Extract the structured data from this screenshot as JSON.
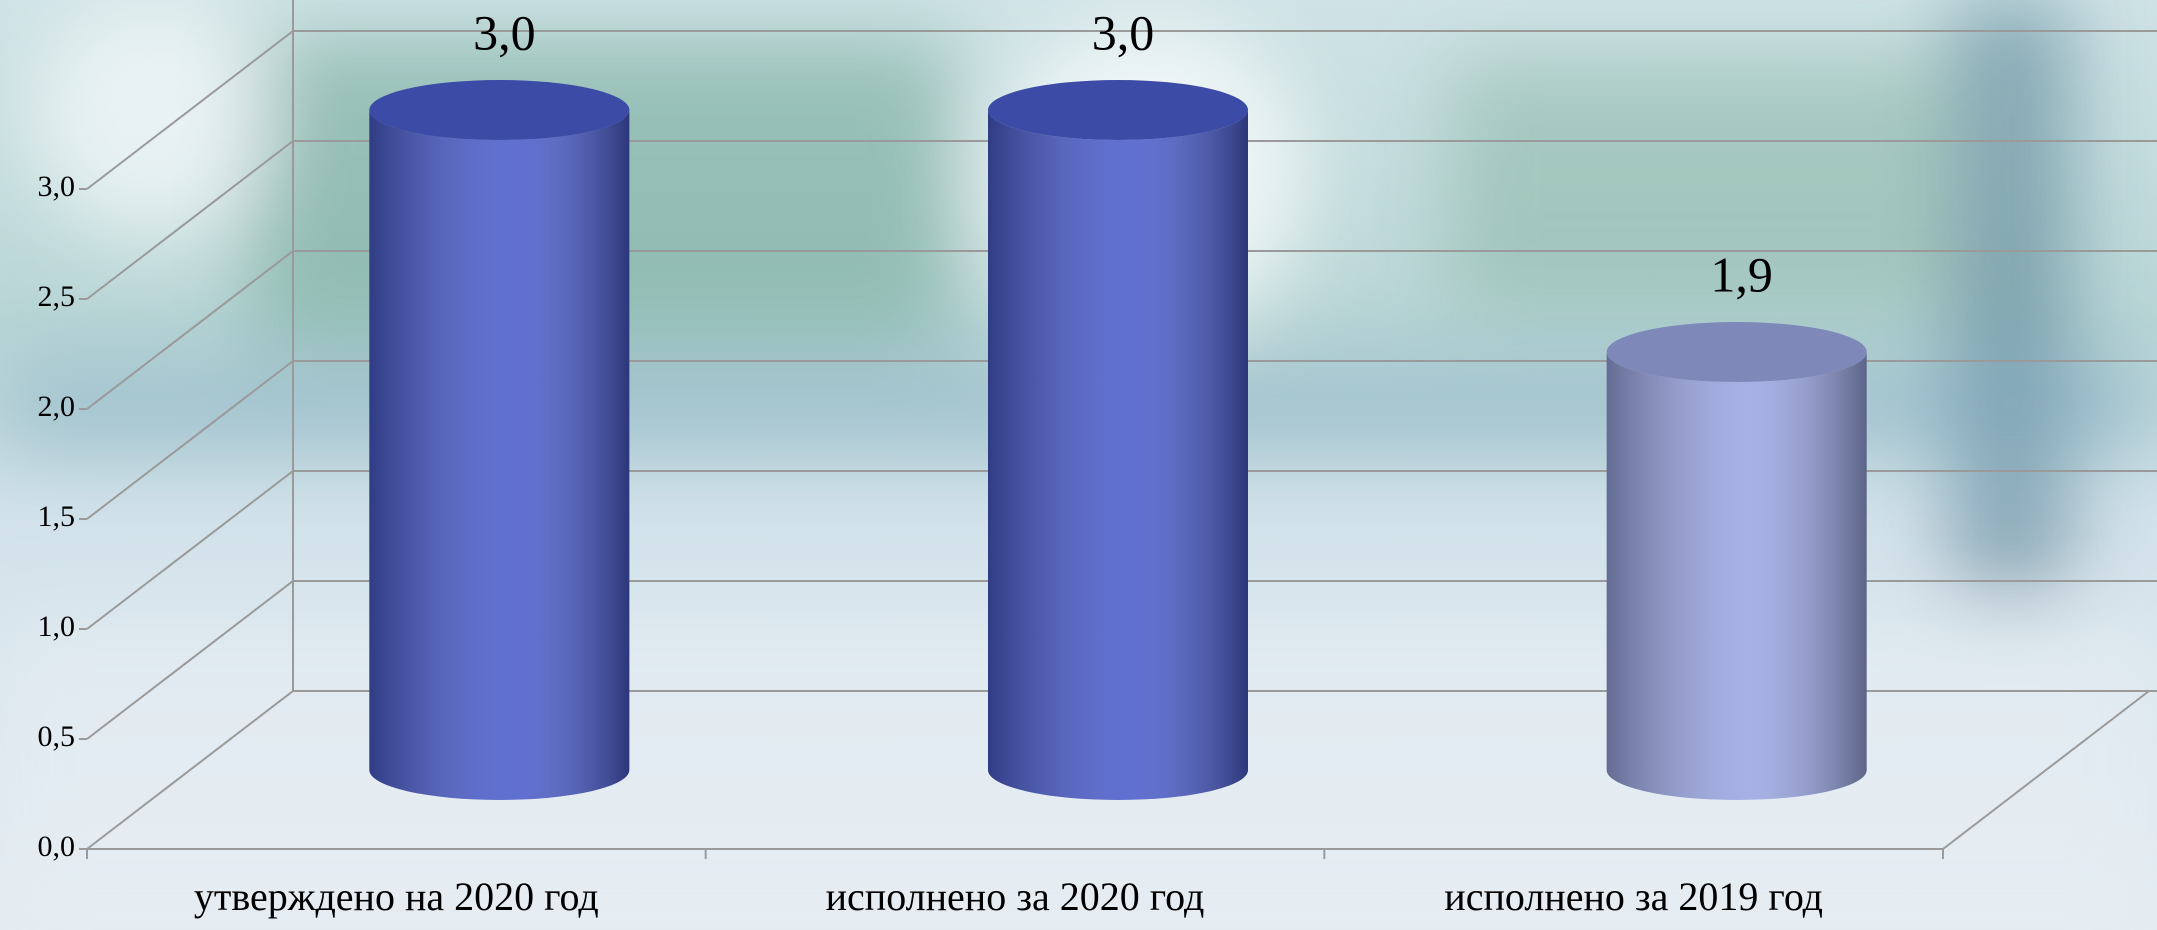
{
  "chart_data": {
    "type": "bar",
    "categories": [
      "утверждено на 2020 год",
      "исполнено за 2020 год",
      "исполнено за 2019 год"
    ],
    "values": [
      3.0,
      3.0,
      1.9
    ],
    "value_labels": [
      "3,0",
      "3,0",
      "1,9"
    ],
    "colors": [
      "#4a5ccb",
      "#4a5ccb",
      "#9aa6e2"
    ],
    "ylim": [
      0,
      3.5
    ],
    "yticks": [
      {
        "value": 0,
        "label": "0,0"
      },
      {
        "value": 0.5,
        "label": "0,5"
      },
      {
        "value": 1,
        "label": "1,0"
      },
      {
        "value": 1.5,
        "label": "1,5"
      },
      {
        "value": 2,
        "label": "2,0"
      },
      {
        "value": 2.5,
        "label": "2,5"
      },
      {
        "value": 3,
        "label": "3,0"
      }
    ],
    "grid": true
  }
}
